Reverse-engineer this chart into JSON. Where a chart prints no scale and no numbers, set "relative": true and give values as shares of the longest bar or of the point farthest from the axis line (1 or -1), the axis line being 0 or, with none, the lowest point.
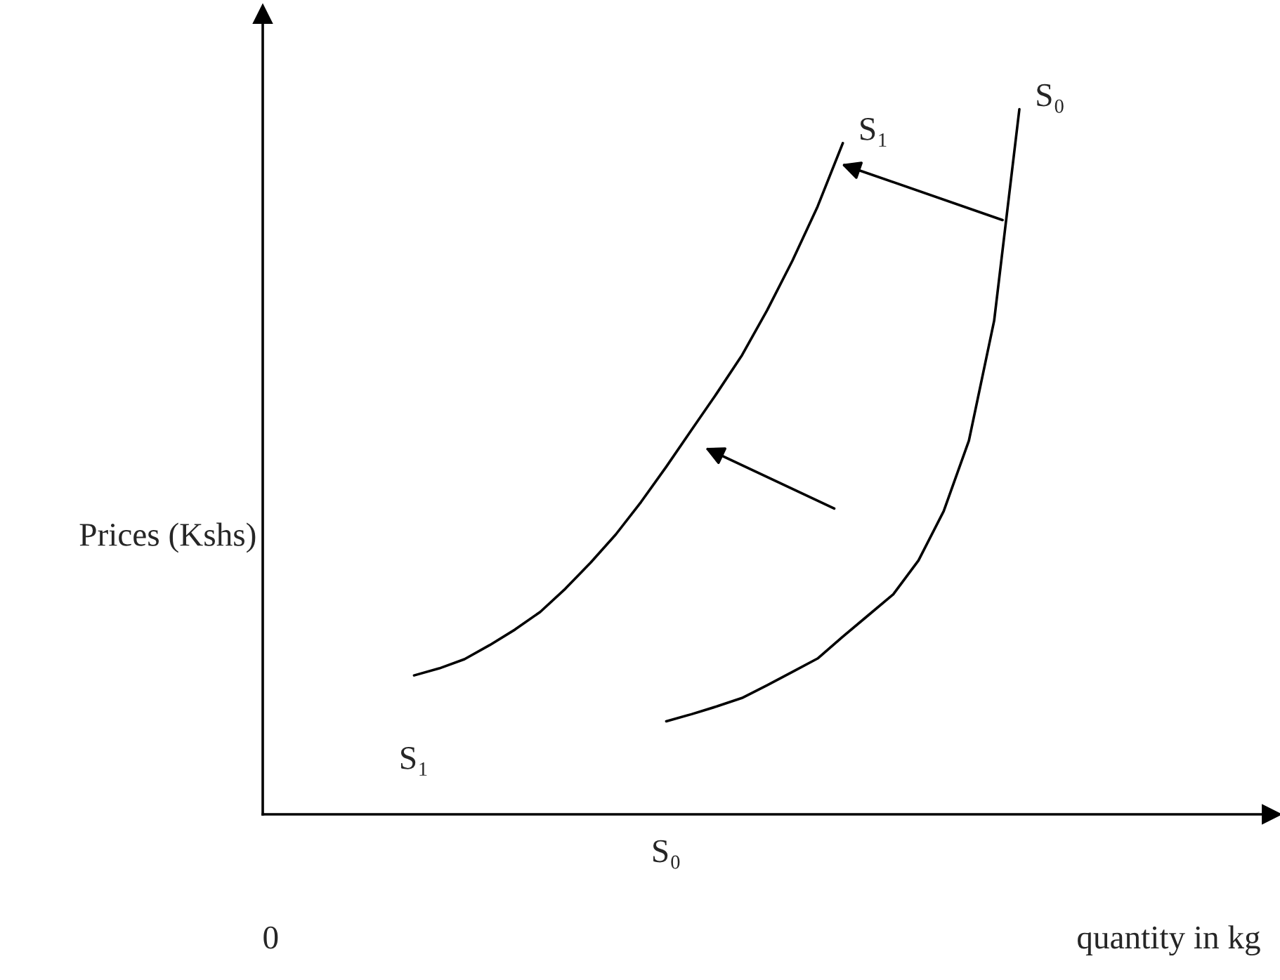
{
  "chart_data": {
    "type": "line",
    "relative": true,
    "xlabel": "quantity in kg",
    "ylabel": "Prices (Kshs)",
    "annotations": [
      "0"
    ],
    "legend": false,
    "categories": [
      null,
      null,
      null,
      null,
      null,
      null,
      null,
      null,
      null,
      null,
      null,
      null,
      null,
      null,
      null,
      null,
      null,
      null,
      null,
      null,
      null,
      null,
      null,
      null,
      null,
      null,
      null,
      null,
      null,
      null,
      null,
      null,
      null,
      null,
      null,
      null,
      null,
      null,
      null,
      null,
      null
    ],
    "series": [
      {
        "name": "S₁",
        "color": "#000000",
        "values": [
          null,
          null,
          null,
          null,
          null,
          null,
          0.197,
          0.207,
          0.22,
          0.24,
          0.262,
          0.287,
          0.32,
          0.357,
          0.397,
          0.443,
          0.493,
          0.545,
          0.597,
          0.651,
          0.715,
          0.785,
          0.862,
          0.952,
          null,
          null,
          null,
          null,
          null,
          null,
          null,
          null,
          null,
          null,
          null,
          null,
          null,
          null,
          null,
          null,
          null
        ]
      },
      {
        "name": "S₀",
        "color": "#000000",
        "values": [
          null,
          null,
          null,
          null,
          null,
          null,
          null,
          null,
          null,
          null,
          null,
          null,
          null,
          null,
          null,
          null,
          0.132,
          0.142,
          0.153,
          0.165,
          0.183,
          0.202,
          0.221,
          0.252,
          0.282,
          0.312,
          0.36,
          0.43,
          0.53,
          0.7,
          1.0,
          null,
          null,
          null,
          null,
          null,
          null,
          null,
          null,
          null,
          null
        ]
      }
    ]
  }
}
